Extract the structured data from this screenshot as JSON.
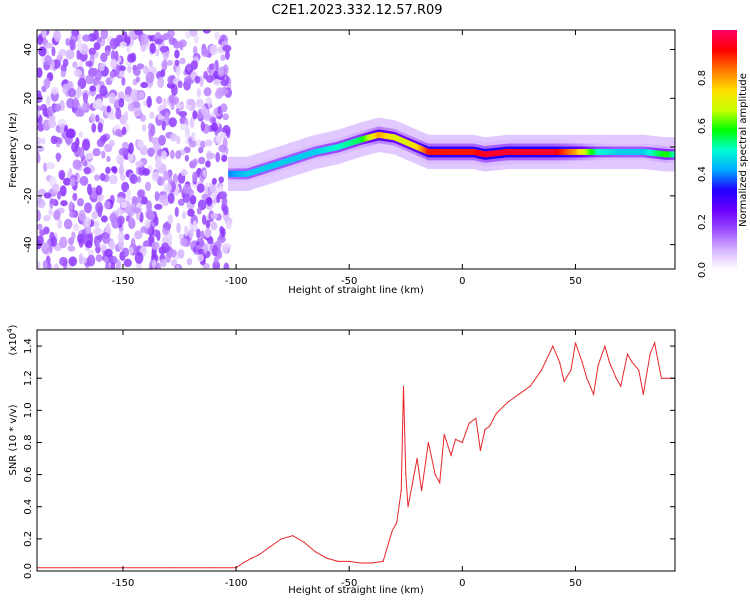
{
  "title": "C2E1.2023.332.12.57.R09",
  "chart_data": [
    {
      "type": "heatmap",
      "xlabel": "Height of straight line (km)",
      "ylabel": "Frequency (Hz)",
      "xlim": [
        -188,
        94
      ],
      "ylim": [
        -50,
        48
      ],
      "xticks": [
        -150,
        -100,
        -50,
        0,
        50
      ],
      "yticks": [
        40,
        20,
        0,
        -20,
        -40
      ],
      "colorbar": {
        "label": "Normalized spectral amplitude",
        "range": [
          0,
          1
        ],
        "ticks": [
          0.0,
          0.2,
          0.4,
          0.6,
          0.8
        ],
        "colors": [
          "#ffffff",
          "#d6b4ff",
          "#9b4dff",
          "#6a00ff",
          "#1f00ff",
          "#00aaff",
          "#00ffd0",
          "#00ff00",
          "#c8ff00",
          "#ffdd00",
          "#ff7700",
          "#ff0000",
          "#ff0066"
        ]
      },
      "noise_region": {
        "x": [
          -188,
          -103
        ],
        "y": [
          -50,
          48
        ],
        "amplitude": 0.12
      },
      "ridge": {
        "x": [
          -103,
          -95,
          -85,
          -75,
          -65,
          -55,
          -45,
          -37,
          -30,
          -25,
          -20,
          -15,
          -5,
          0,
          5,
          10,
          20,
          30,
          40,
          50,
          60,
          70,
          80,
          90,
          94
        ],
        "y": [
          -11,
          -11,
          -8,
          -5,
          -2,
          0,
          3,
          5,
          4,
          2,
          0,
          -2,
          -2,
          -2,
          -2,
          -3,
          -2,
          -2,
          -2,
          -2,
          -2,
          -2,
          -2,
          -3,
          -3
        ],
        "amplitude": [
          0.4,
          0.45,
          0.45,
          0.45,
          0.45,
          0.5,
          0.55,
          0.8,
          0.7,
          0.7,
          0.75,
          0.9,
          0.9,
          0.9,
          0.9,
          0.95,
          0.95,
          0.95,
          0.95,
          0.8,
          0.5,
          0.45,
          0.45,
          0.6,
          0.5
        ]
      }
    },
    {
      "type": "line",
      "xlabel": "Height of straight line (km)",
      "ylabel": "SNR (10 * v/v)",
      "yscale_label": "(x10",
      "yscale_exp": "4",
      "yscale_close": ")",
      "xlim": [
        -188,
        94
      ],
      "ylim": [
        0,
        1.5
      ],
      "xticks": [
        -150,
        -100,
        -50,
        0,
        50
      ],
      "yticks": [
        0.0,
        0.2,
        0.4,
        0.6,
        0.8,
        1.0,
        1.2,
        1.4
      ],
      "ytick_labels": [
        "0.0",
        "0.2",
        "0.4",
        "0.6",
        "0.8",
        "1.0",
        "1.2",
        "1.4"
      ],
      "series": [
        {
          "color": "#e8262a",
          "x": [
            -188,
            -170,
            -150,
            -130,
            -110,
            -100,
            -97,
            -93,
            -90,
            -85,
            -80,
            -75,
            -70,
            -65,
            -60,
            -55,
            -50,
            -45,
            -40,
            -35,
            -31,
            -29,
            -27,
            -26,
            -25,
            -24,
            -22,
            -20,
            -18,
            -15,
            -12,
            -10,
            -8,
            -5,
            -3,
            0,
            3,
            6,
            8,
            10,
            12,
            15,
            20,
            25,
            30,
            35,
            40,
            43,
            45,
            48,
            50,
            53,
            55,
            58,
            60,
            63,
            65,
            68,
            70,
            73,
            75,
            78,
            80,
            83,
            85,
            88,
            90,
            94
          ],
          "y": [
            0.02,
            0.02,
            0.02,
            0.02,
            0.02,
            0.02,
            0.05,
            0.08,
            0.1,
            0.15,
            0.2,
            0.22,
            0.18,
            0.12,
            0.08,
            0.06,
            0.06,
            0.05,
            0.05,
            0.06,
            0.25,
            0.3,
            0.5,
            1.15,
            0.6,
            0.4,
            0.55,
            0.7,
            0.5,
            0.8,
            0.6,
            0.55,
            0.85,
            0.72,
            0.82,
            0.8,
            0.92,
            0.95,
            0.75,
            0.88,
            0.9,
            0.98,
            1.05,
            1.1,
            1.15,
            1.25,
            1.4,
            1.3,
            1.18,
            1.25,
            1.42,
            1.3,
            1.2,
            1.1,
            1.28,
            1.4,
            1.3,
            1.2,
            1.15,
            1.35,
            1.3,
            1.25,
            1.1,
            1.35,
            1.42,
            1.2,
            1.2,
            1.2
          ]
        }
      ]
    }
  ]
}
